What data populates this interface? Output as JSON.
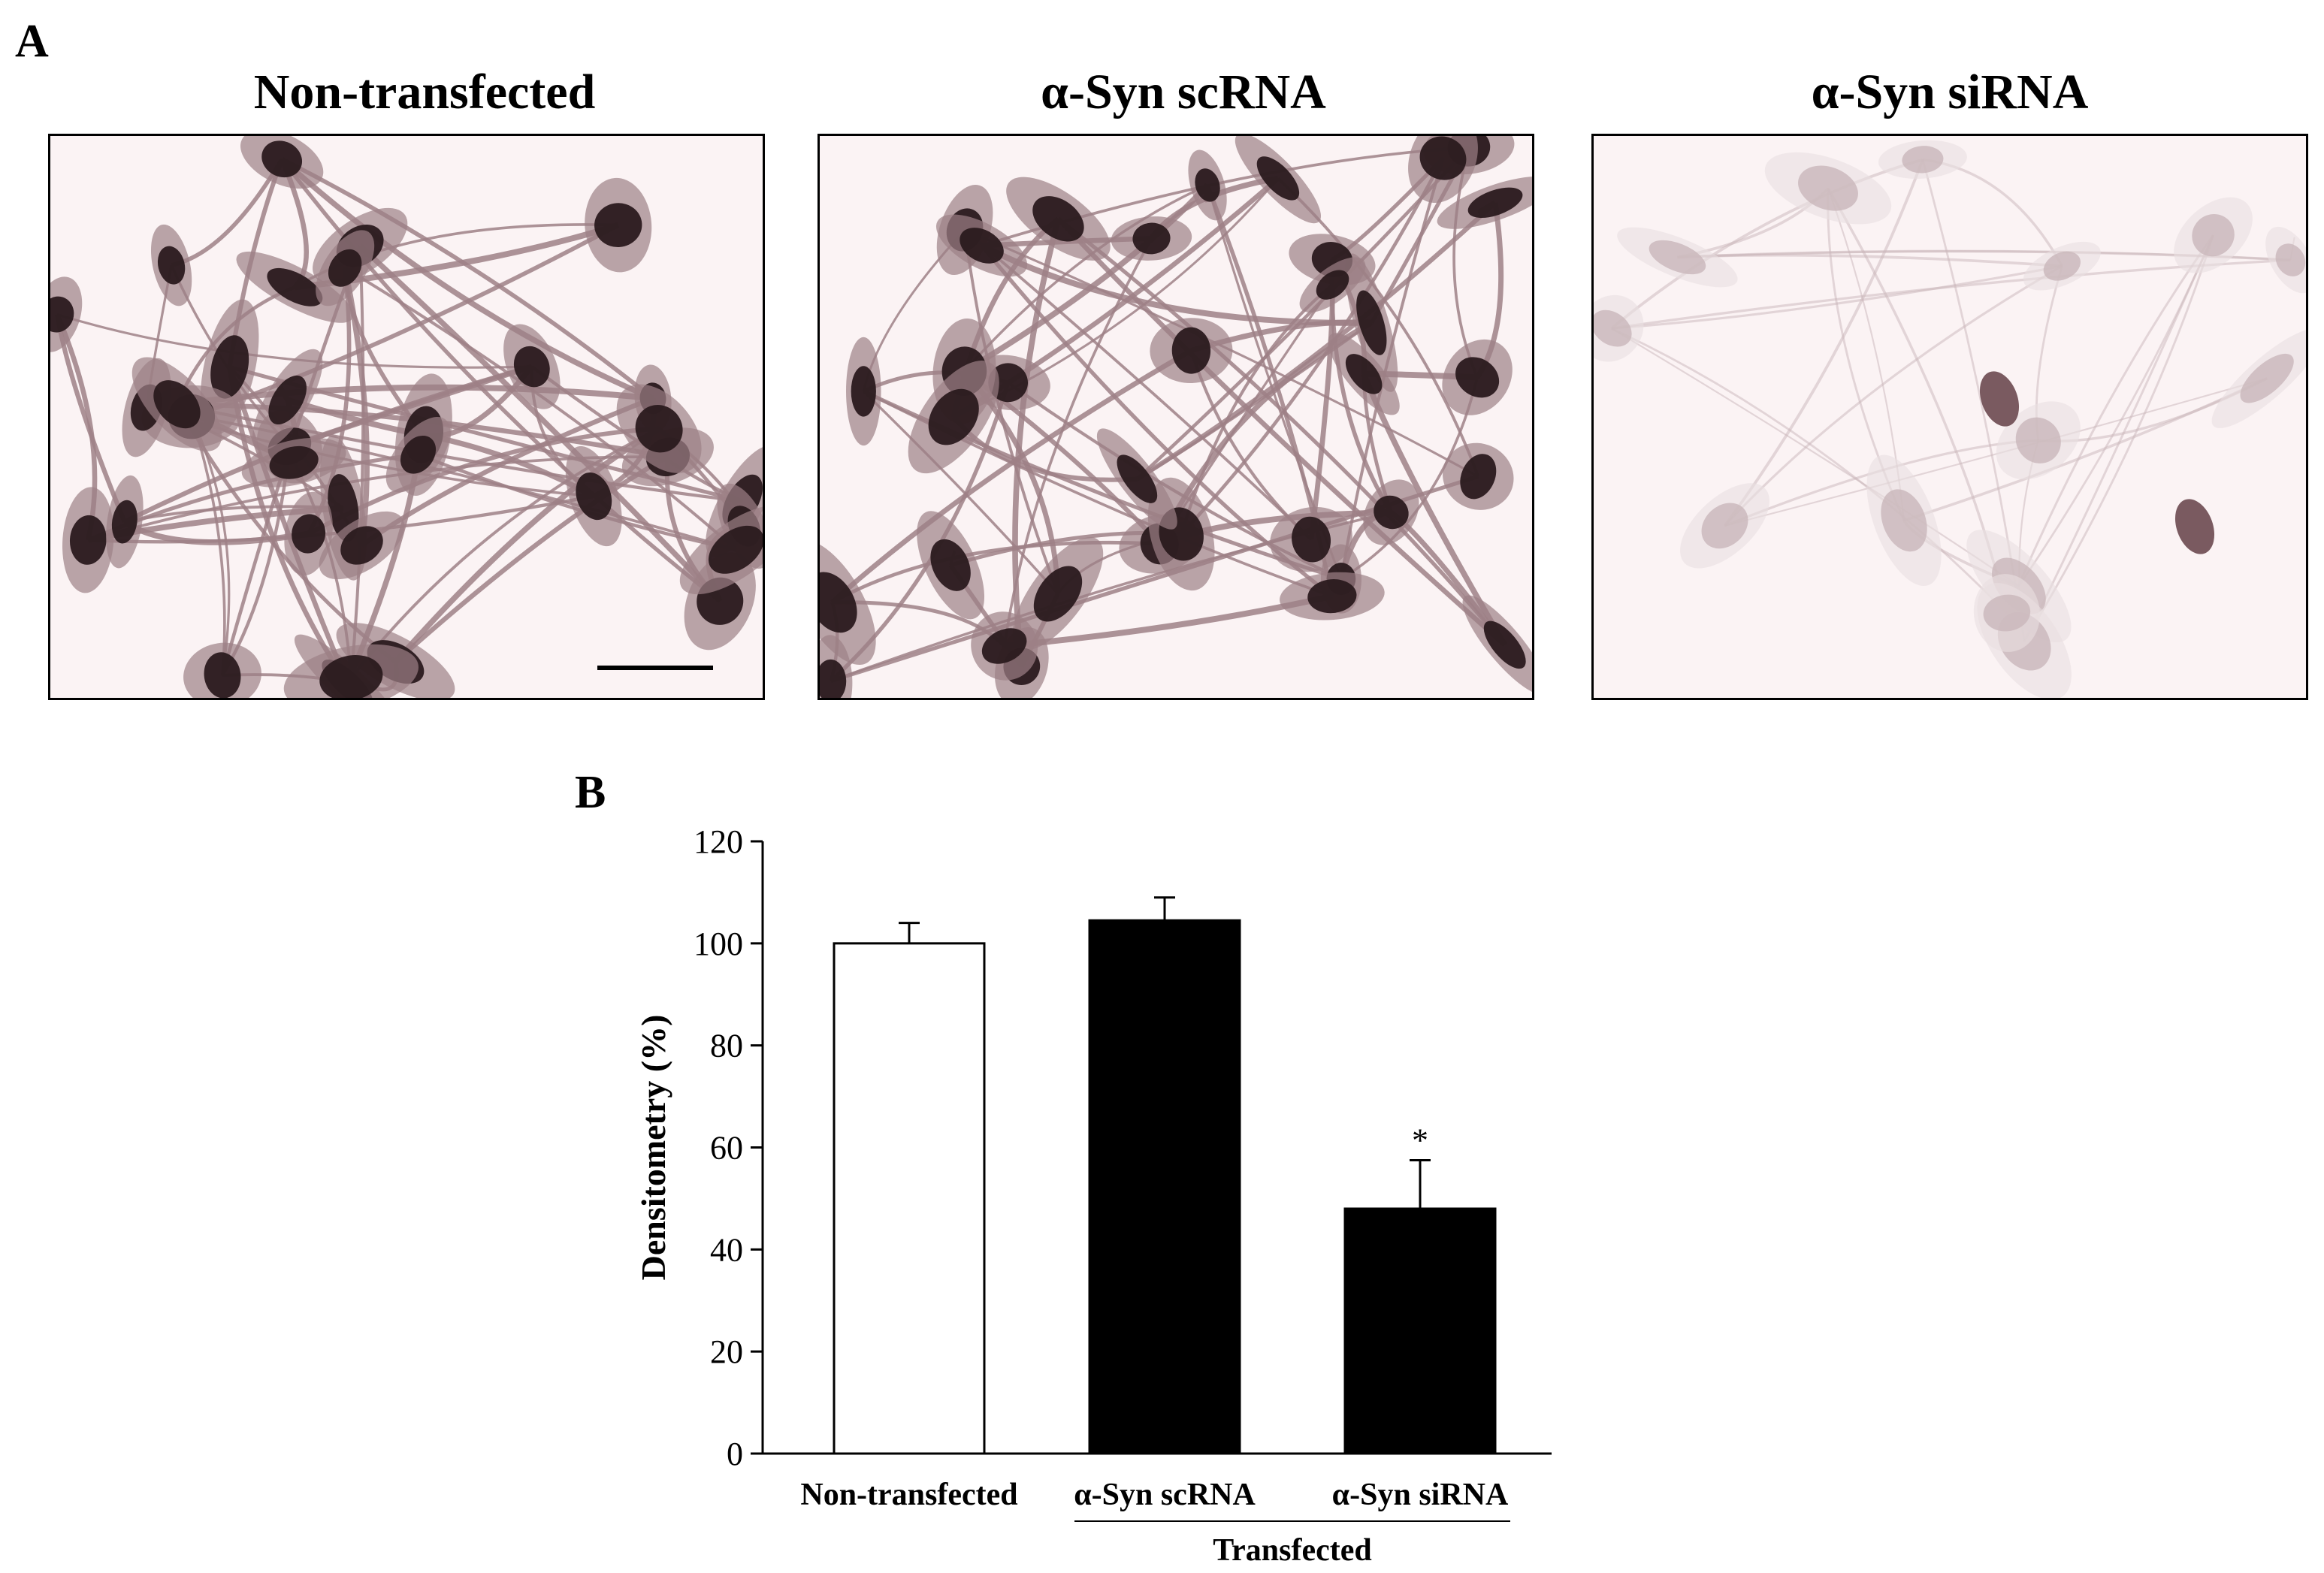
{
  "panel_a_label": "A",
  "panel_b_label": "B",
  "micrographs": [
    {
      "title": "Non-transfected",
      "stain": "heavy"
    },
    {
      "title": "α-Syn scRNA",
      "stain": "heavy"
    },
    {
      "title": "α-Syn siRNA",
      "stain": "light"
    }
  ],
  "colors": {
    "stain_dark": "#2a1a1e",
    "stain_mid": "#9d8086",
    "stain_light": "#c9b6ba",
    "background": "#fbf3f4"
  },
  "chart_data": {
    "type": "bar",
    "categories": [
      "Non-transfected",
      "α-Syn scRNA",
      "α-Syn siRNA"
    ],
    "values": [
      100,
      104.5,
      48
    ],
    "errors": [
      4,
      4.5,
      9.5
    ],
    "bar_colors": [
      "#ffffff",
      "#000000",
      "#000000"
    ],
    "significance": [
      "",
      "",
      "*"
    ],
    "ylabel": "Densitometry (%)",
    "ylim": [
      0,
      120
    ],
    "yticks": [
      0,
      20,
      40,
      60,
      80,
      100,
      120
    ],
    "group_label": "Transfected",
    "group_members": [
      1,
      2
    ],
    "grid": false
  }
}
